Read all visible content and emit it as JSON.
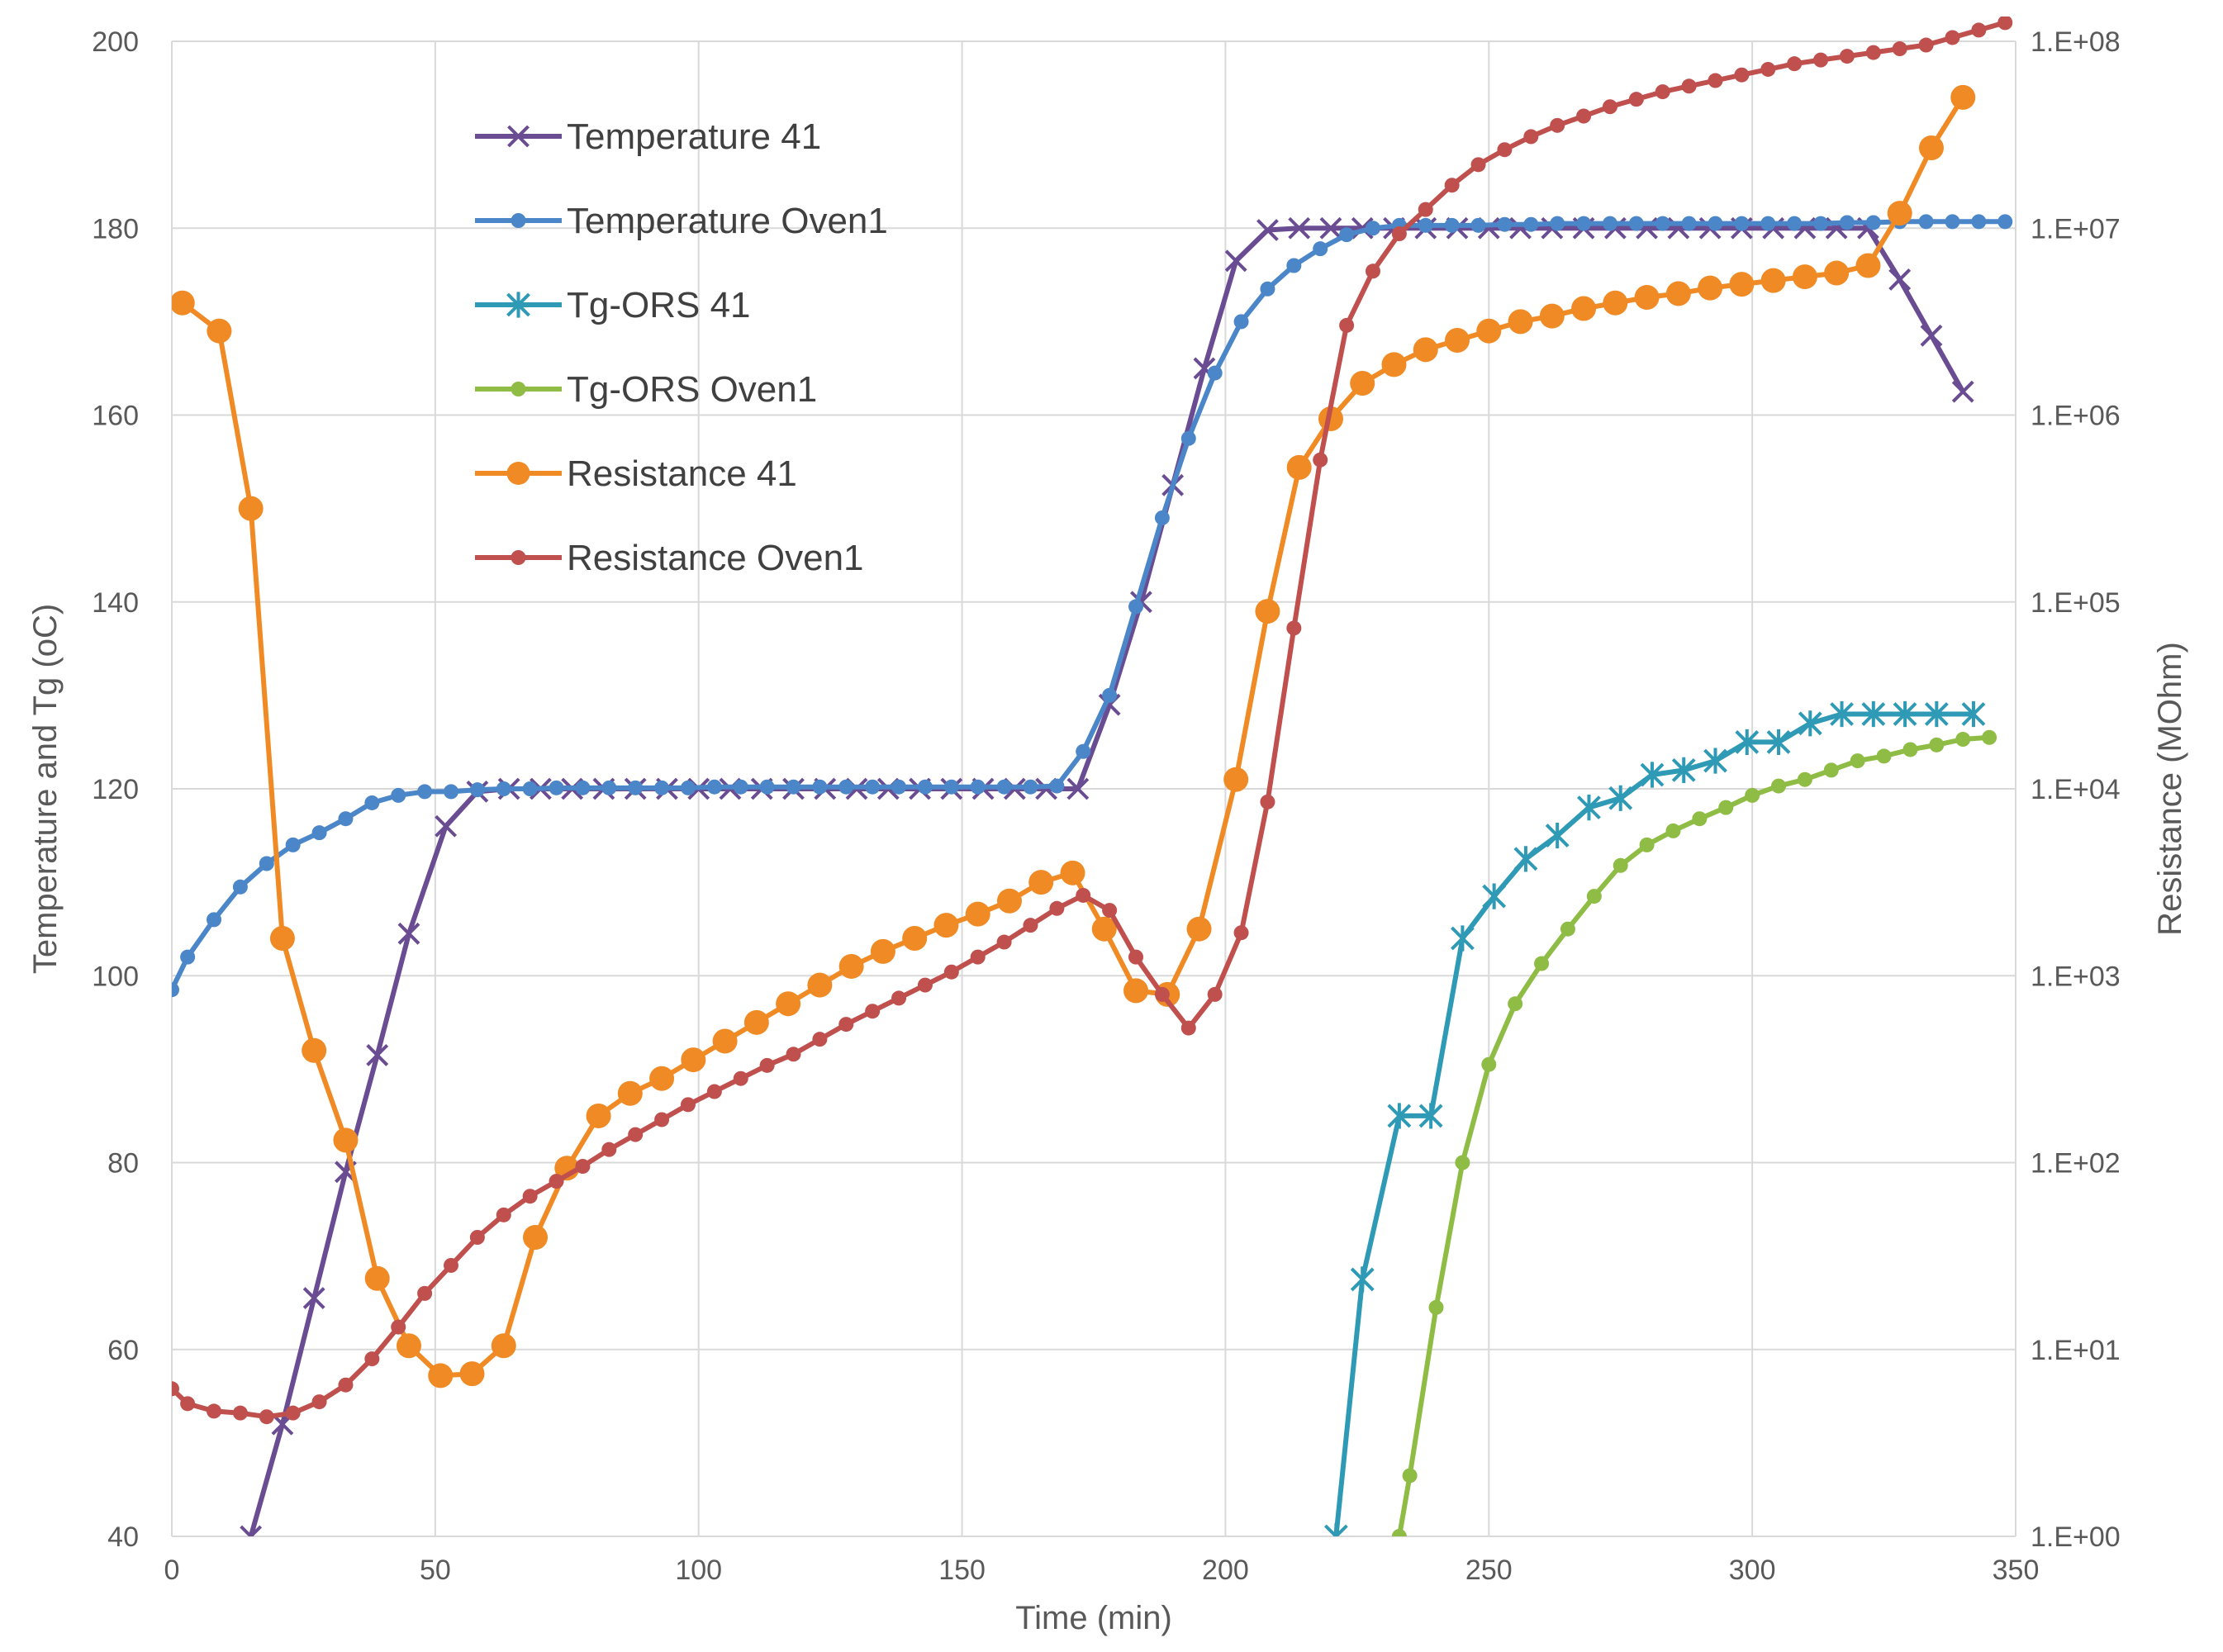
{
  "chart_data": {
    "type": "line",
    "title": "",
    "xlabel": "Time (min)",
    "ylabel": "Temperature and Tg (oC)",
    "y2label": "Resistance (MOhm)",
    "xlim": [
      0,
      350
    ],
    "ylim": [
      40,
      200
    ],
    "y2lim_log10": [
      0,
      8
    ],
    "grid": true,
    "legend_position": "top-left",
    "x_ticks": [
      "0",
      "50",
      "100",
      "150",
      "200",
      "250",
      "300",
      "350"
    ],
    "y_ticks": [
      "40",
      "60",
      "80",
      "100",
      "120",
      "140",
      "160",
      "180",
      "200"
    ],
    "y2_ticks": [
      "1.E+00",
      "1.E+01",
      "1.E+02",
      "1.E+03",
      "1.E+04",
      "1.E+05",
      "1.E+06",
      "1.E+07",
      "1.E+08"
    ],
    "series": [
      {
        "name": "Temperature 41",
        "axis": "left",
        "color": "#6a4c93",
        "marker": "x",
        "x": [
          15,
          21,
          27,
          33,
          39,
          45,
          52,
          58,
          64,
          70,
          76,
          82,
          88,
          94,
          100,
          106,
          112,
          118,
          124,
          130,
          136,
          142,
          148,
          154,
          160,
          166,
          172,
          178,
          184,
          190,
          196,
          202,
          208,
          214,
          220,
          226,
          232,
          238,
          244,
          250,
          256,
          262,
          268,
          274,
          280,
          286,
          292,
          298,
          304,
          310,
          316,
          322,
          328,
          334,
          340
        ],
        "y": [
          40,
          52,
          65.5,
          79,
          91.5,
          104.5,
          116,
          119.7,
          120,
          120,
          120,
          120,
          120,
          120,
          120,
          120,
          120,
          120,
          120,
          120,
          120,
          120,
          120,
          120,
          120,
          120,
          120,
          129,
          140,
          152.5,
          165,
          176.5,
          179.8,
          180,
          180,
          180,
          180,
          180,
          180,
          180,
          180,
          180,
          180,
          180,
          180,
          180,
          180,
          180,
          180,
          180,
          180,
          180,
          174.5,
          168.5,
          162.5
        ]
      },
      {
        "name": "Temperature Oven1",
        "axis": "left",
        "color": "#4a86c8",
        "marker": "dot",
        "x": [
          0,
          3,
          8,
          13,
          18,
          23,
          28,
          33,
          38,
          43,
          48,
          53,
          58,
          63,
          68,
          73,
          78,
          83,
          88,
          93,
          98,
          103,
          108,
          113,
          118,
          123,
          128,
          133,
          138,
          143,
          148,
          153,
          158,
          163,
          168,
          173,
          178,
          183,
          188,
          193,
          198,
          203,
          208,
          213,
          218,
          223,
          228,
          233,
          238,
          243,
          248,
          253,
          258,
          263,
          268,
          273,
          278,
          283,
          288,
          293,
          298,
          303,
          308,
          313,
          318,
          323,
          328,
          333,
          338,
          343,
          348
        ],
        "y": [
          98.5,
          102,
          106,
          109.5,
          112,
          114,
          115.3,
          116.8,
          118.5,
          119.3,
          119.7,
          119.7,
          119.9,
          120,
          120,
          120.1,
          120.1,
          120.1,
          120.1,
          120.1,
          120.1,
          120.2,
          120.2,
          120.2,
          120.2,
          120.2,
          120.2,
          120.2,
          120.2,
          120.2,
          120.2,
          120.2,
          120.2,
          120.2,
          120.3,
          124,
          130,
          139.5,
          149,
          157.5,
          164.5,
          170,
          173.5,
          176,
          177.8,
          179.3,
          180,
          180.3,
          180.3,
          180.3,
          180.3,
          180.4,
          180.4,
          180.5,
          180.5,
          180.5,
          180.5,
          180.5,
          180.5,
          180.5,
          180.5,
          180.5,
          180.5,
          180.5,
          180.6,
          180.6,
          180.7,
          180.7,
          180.7,
          180.7,
          180.7
        ]
      },
      {
        "name": "Tg-ORS 41",
        "axis": "left",
        "color": "#2e9ab5",
        "marker": "star",
        "x": [
          221,
          226,
          233,
          239,
          245,
          251,
          257,
          263,
          269,
          275,
          281,
          287,
          293,
          299,
          305,
          311,
          317,
          323,
          329,
          335,
          342
        ],
        "y": [
          40,
          67.5,
          85,
          85,
          104,
          108.5,
          112.5,
          115,
          118,
          119,
          121.5,
          122,
          123,
          125,
          125,
          127,
          128,
          128,
          128,
          128,
          128
        ]
      },
      {
        "name": "Tg-ORS Oven1",
        "axis": "left",
        "color": "#8fbc44",
        "marker": "dot",
        "x": [
          233,
          235,
          240,
          245,
          250,
          255,
          260,
          265,
          270,
          275,
          280,
          285,
          290,
          295,
          300,
          305,
          310,
          315,
          320,
          325,
          330,
          335,
          340,
          345
        ],
        "y": [
          40,
          46.5,
          64.5,
          80,
          90.5,
          97,
          101.3,
          105,
          108.5,
          111.8,
          114,
          115.5,
          116.8,
          118,
          119.3,
          120.3,
          121,
          122,
          123,
          123.5,
          124.2,
          124.7,
          125.3,
          125.5
        ]
      },
      {
        "name": "Resistance 41",
        "axis": "right",
        "color": "#f08a24",
        "marker": "big-dot",
        "x": [
          2,
          9,
          15,
          21,
          27,
          33,
          39,
          45,
          51,
          57,
          63,
          69,
          75,
          81,
          87,
          93,
          99,
          105,
          111,
          117,
          123,
          129,
          135,
          141,
          147,
          153,
          159,
          165,
          171,
          177,
          183,
          189,
          195,
          202,
          208,
          214,
          220,
          226,
          232,
          238,
          244,
          250,
          256,
          262,
          268,
          274,
          280,
          286,
          292,
          298,
          304,
          310,
          316,
          322,
          328,
          334,
          340
        ],
        "y": [
          6.6,
          6.45,
          5.5,
          3.2,
          2.6,
          2.12,
          1.38,
          1.02,
          0.86,
          0.87,
          1.02,
          1.6,
          1.97,
          2.25,
          2.37,
          2.45,
          2.55,
          2.65,
          2.75,
          2.85,
          2.95,
          3.05,
          3.13,
          3.2,
          3.27,
          3.33,
          3.4,
          3.5,
          3.55,
          3.25,
          2.92,
          2.9,
          3.25,
          4.05,
          4.95,
          5.72,
          5.98,
          6.17,
          6.27,
          6.35,
          6.4,
          6.45,
          6.5,
          6.53,
          6.57,
          6.6,
          6.63,
          6.65,
          6.68,
          6.7,
          6.72,
          6.74,
          6.76,
          6.8,
          7.08,
          7.43,
          7.7
        ]
      },
      {
        "name": "Resistance Oven1",
        "axis": "right",
        "color": "#c0504d",
        "marker": "dot",
        "x": [
          0,
          3,
          8,
          13,
          18,
          23,
          28,
          33,
          38,
          43,
          48,
          53,
          58,
          63,
          68,
          73,
          78,
          83,
          88,
          93,
          98,
          103,
          108,
          113,
          118,
          123,
          128,
          133,
          138,
          143,
          148,
          153,
          158,
          163,
          168,
          173,
          178,
          183,
          188,
          193,
          198,
          203,
          208,
          213,
          218,
          223,
          228,
          233,
          238,
          243,
          248,
          253,
          258,
          263,
          268,
          273,
          278,
          283,
          288,
          293,
          298,
          303,
          308,
          313,
          318,
          323,
          328,
          333,
          338,
          343,
          348
        ],
        "y": [
          0.79,
          0.71,
          0.67,
          0.66,
          0.64,
          0.66,
          0.72,
          0.81,
          0.95,
          1.12,
          1.3,
          1.45,
          1.6,
          1.72,
          1.82,
          1.9,
          1.98,
          2.07,
          2.15,
          2.23,
          2.31,
          2.38,
          2.45,
          2.52,
          2.58,
          2.66,
          2.74,
          2.81,
          2.88,
          2.95,
          3.02,
          3.1,
          3.18,
          3.27,
          3.36,
          3.43,
          3.35,
          3.1,
          2.9,
          2.72,
          2.9,
          3.23,
          3.93,
          4.86,
          5.76,
          6.48,
          6.77,
          6.97,
          7.1,
          7.23,
          7.34,
          7.42,
          7.49,
          7.55,
          7.6,
          7.65,
          7.69,
          7.73,
          7.76,
          7.79,
          7.82,
          7.85,
          7.88,
          7.9,
          7.92,
          7.94,
          7.96,
          7.98,
          8.02,
          8.06,
          8.1
        ]
      }
    ]
  }
}
